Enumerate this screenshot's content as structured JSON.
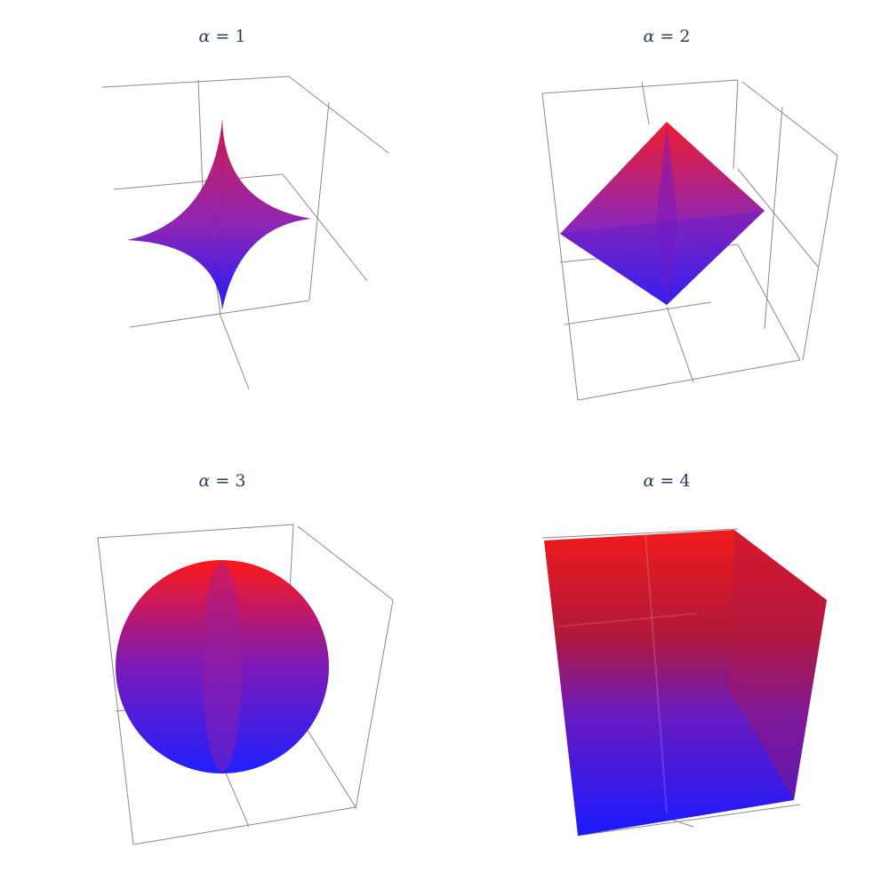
{
  "chart_data": {
    "type": "surface3d",
    "description": "",
    "color_low": "#1a1aff",
    "color_high": "#ff1a1a",
    "panels": [
      {
        "title_symbol": "α",
        "title_rest": " = 1",
        "alpha": 1,
        "shape": "astroid",
        "camera": "oblique-left"
      },
      {
        "title_symbol": "α",
        "title_rest": " = 2",
        "alpha": 2,
        "shape": "octahedron",
        "camera": "oblique-right"
      },
      {
        "title_symbol": "α",
        "title_rest": " = 3",
        "alpha": 3,
        "shape": "sphere",
        "camera": "oblique-right"
      },
      {
        "title_symbol": "α",
        "title_rest": " = 4",
        "alpha": 4,
        "shape": "cube",
        "camera": "oblique-right"
      }
    ]
  }
}
